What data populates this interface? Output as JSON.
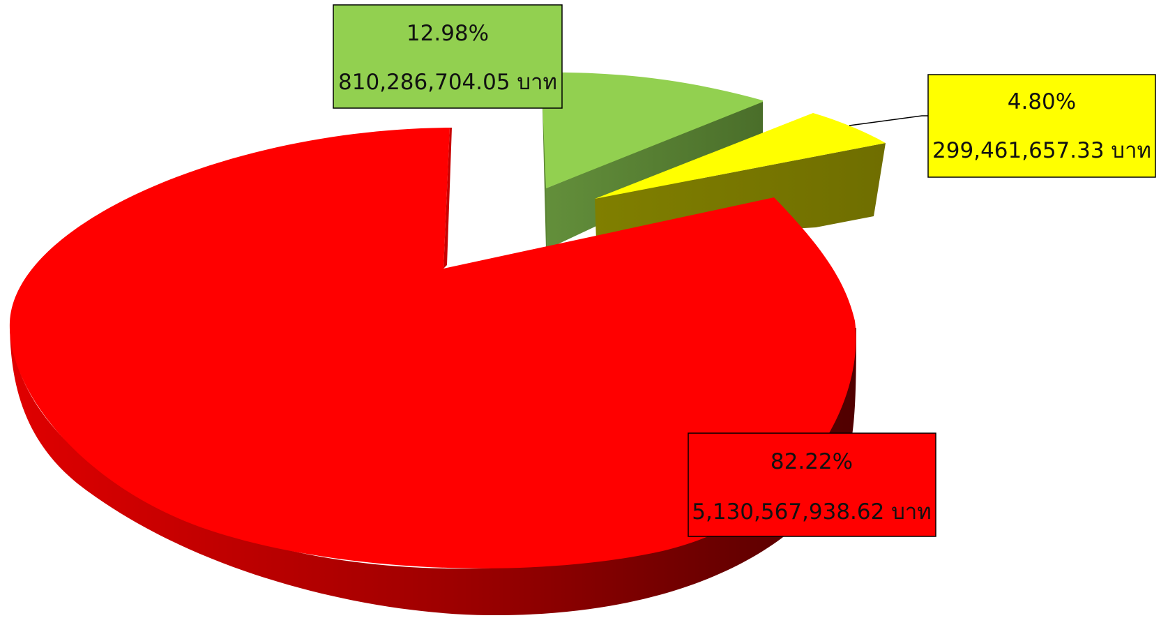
{
  "chart_data": {
    "type": "pie",
    "style": "3d-exploded",
    "series": [
      {
        "values": [
          82.22,
          12.98,
          4.8
        ],
        "amounts": [
          "5,130,567,938.62 บาท",
          "810,286,704.05 บาท",
          "299,461,657.33 บาท"
        ]
      }
    ],
    "slices": [
      {
        "percent_label": "82.22%",
        "amount_label": "5,130,567,938.62 บาท",
        "value": 82.22,
        "color": "#ff0000",
        "side_color_light": "#d80000",
        "side_color_dark": "#5e0000"
      },
      {
        "percent_label": "12.98%",
        "amount_label": "810,286,704.05 บาท",
        "value": 12.98,
        "color": "#92d050",
        "side_color_light": "#5f8a38",
        "side_color_dark": "#4a6e2a"
      },
      {
        "percent_label": "4.80%",
        "amount_label": "299,461,657.33 บาท",
        "value": 4.8,
        "color": "#ffff00",
        "side_color_light": "#7f7f00",
        "side_color_dark": "#6e6e00"
      }
    ],
    "legend": "none",
    "title": ""
  }
}
